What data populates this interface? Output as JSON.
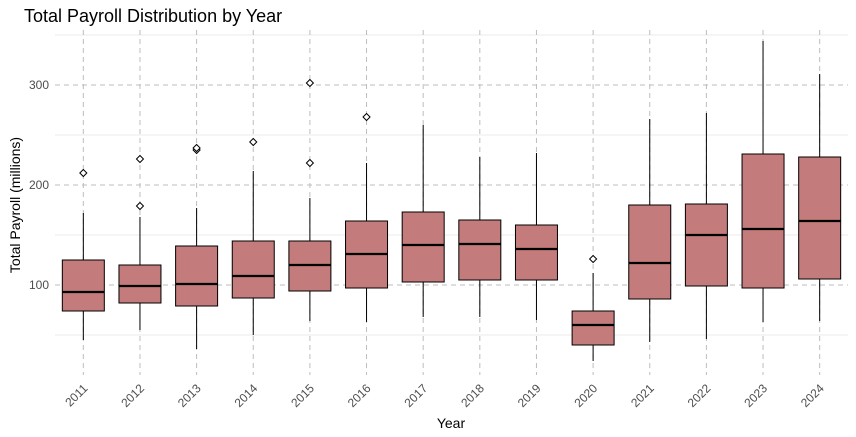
{
  "chart_data": {
    "type": "boxplot",
    "title": "Total Payroll Distribution by Year",
    "xlabel": "Year",
    "ylabel": "Total Payroll (millions)",
    "ylim": [
      10,
      355
    ],
    "yticks": [
      100,
      200,
      300
    ],
    "grid": true,
    "categories": [
      "2011",
      "2012",
      "2013",
      "2014",
      "2015",
      "2016",
      "2017",
      "2018",
      "2019",
      "2020",
      "2021",
      "2022",
      "2023",
      "2024"
    ],
    "boxes": [
      {
        "year": "2011",
        "min": 45,
        "q1": 74,
        "median": 93,
        "q3": 125,
        "max": 172,
        "outliers": [
          212
        ]
      },
      {
        "year": "2012",
        "min": 55,
        "q1": 82,
        "median": 99,
        "q3": 120,
        "max": 168,
        "outliers": [
          179,
          226
        ]
      },
      {
        "year": "2013",
        "min": 36,
        "q1": 79,
        "median": 101,
        "q3": 139,
        "max": 177,
        "outliers": [
          235,
          237
        ]
      },
      {
        "year": "2014",
        "min": 50,
        "q1": 87,
        "median": 109,
        "q3": 144,
        "max": 214,
        "outliers": [
          243
        ]
      },
      {
        "year": "2015",
        "min": 64,
        "q1": 94,
        "median": 120,
        "q3": 144,
        "max": 187,
        "outliers": [
          222,
          302
        ]
      },
      {
        "year": "2016",
        "min": 63,
        "q1": 97,
        "median": 131,
        "q3": 164,
        "max": 222,
        "outliers": [
          268
        ]
      },
      {
        "year": "2017",
        "min": 68,
        "q1": 103,
        "median": 140,
        "q3": 173,
        "max": 260,
        "outliers": []
      },
      {
        "year": "2018",
        "min": 68,
        "q1": 105,
        "median": 141,
        "q3": 165,
        "max": 228,
        "outliers": []
      },
      {
        "year": "2019",
        "min": 65,
        "q1": 105,
        "median": 136,
        "q3": 160,
        "max": 232,
        "outliers": []
      },
      {
        "year": "2020",
        "min": 24,
        "q1": 40,
        "median": 60,
        "q3": 74,
        "max": 112,
        "outliers": [
          126
        ]
      },
      {
        "year": "2021",
        "min": 43,
        "q1": 86,
        "median": 122,
        "q3": 180,
        "max": 266,
        "outliers": []
      },
      {
        "year": "2022",
        "min": 46,
        "q1": 99,
        "median": 150,
        "q3": 181,
        "max": 272,
        "outliers": []
      },
      {
        "year": "2023",
        "min": 63,
        "q1": 97,
        "median": 156,
        "q3": 231,
        "max": 344,
        "outliers": []
      },
      {
        "year": "2024",
        "min": 64,
        "q1": 106,
        "median": 164,
        "q3": 228,
        "max": 311,
        "outliers": []
      }
    ],
    "colors": {
      "box_fill": "#c47b7b",
      "box_stroke": "#000000",
      "grid": "#bdbdbd"
    }
  }
}
